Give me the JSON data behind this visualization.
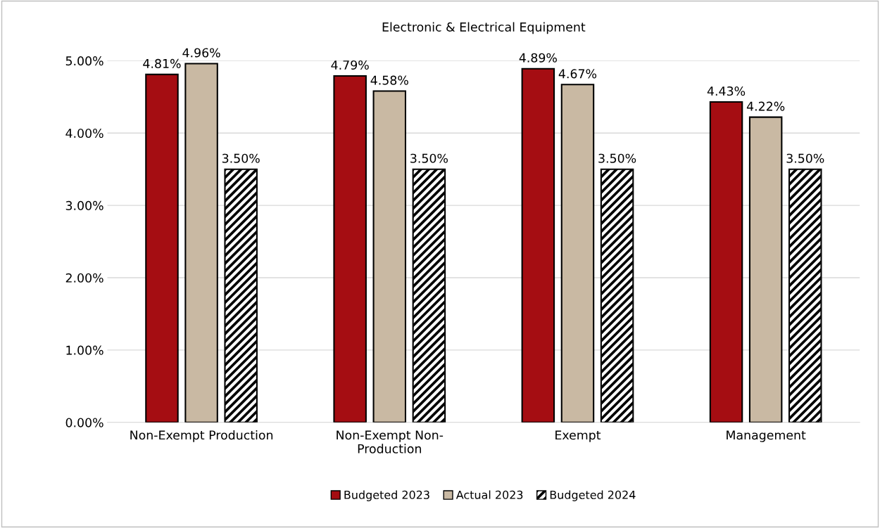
{
  "chart_data": {
    "type": "bar",
    "title": "Electronic & Electrical Equipment",
    "categories": [
      "Non-Exempt Production",
      "Non-Exempt Non-\nProduction",
      "Exempt",
      "Management"
    ],
    "series": [
      {
        "name": "Budgeted 2023",
        "color": "#a50d12",
        "values": [
          4.81,
          4.79,
          4.89,
          4.43
        ],
        "value_labels": [
          "4.81%",
          "4.79%",
          "4.89%",
          "4.43%"
        ]
      },
      {
        "name": "Actual 2023",
        "color": "#c9b9a3",
        "values": [
          4.96,
          4.58,
          4.67,
          4.22
        ],
        "value_labels": [
          "4.96%",
          "4.58%",
          "4.67%",
          "4.22%"
        ]
      },
      {
        "name": "Budgeted 2024",
        "color": "#000000",
        "values": [
          3.5,
          3.5,
          3.5,
          3.5
        ],
        "value_labels": [
          "3.50%",
          "3.50%",
          "3.50%",
          "3.50%"
        ]
      }
    ],
    "ylim": [
      0,
      5
    ],
    "yticks": [
      {
        "value": 0,
        "label": "0.00%"
      },
      {
        "value": 1,
        "label": "1.00%"
      },
      {
        "value": 2,
        "label": "2.00%"
      },
      {
        "value": 3,
        "label": "3.00%"
      },
      {
        "value": 4,
        "label": "4.00%"
      },
      {
        "value": 5,
        "label": "5.00%"
      }
    ],
    "grid": "y",
    "legend": "bottom"
  }
}
